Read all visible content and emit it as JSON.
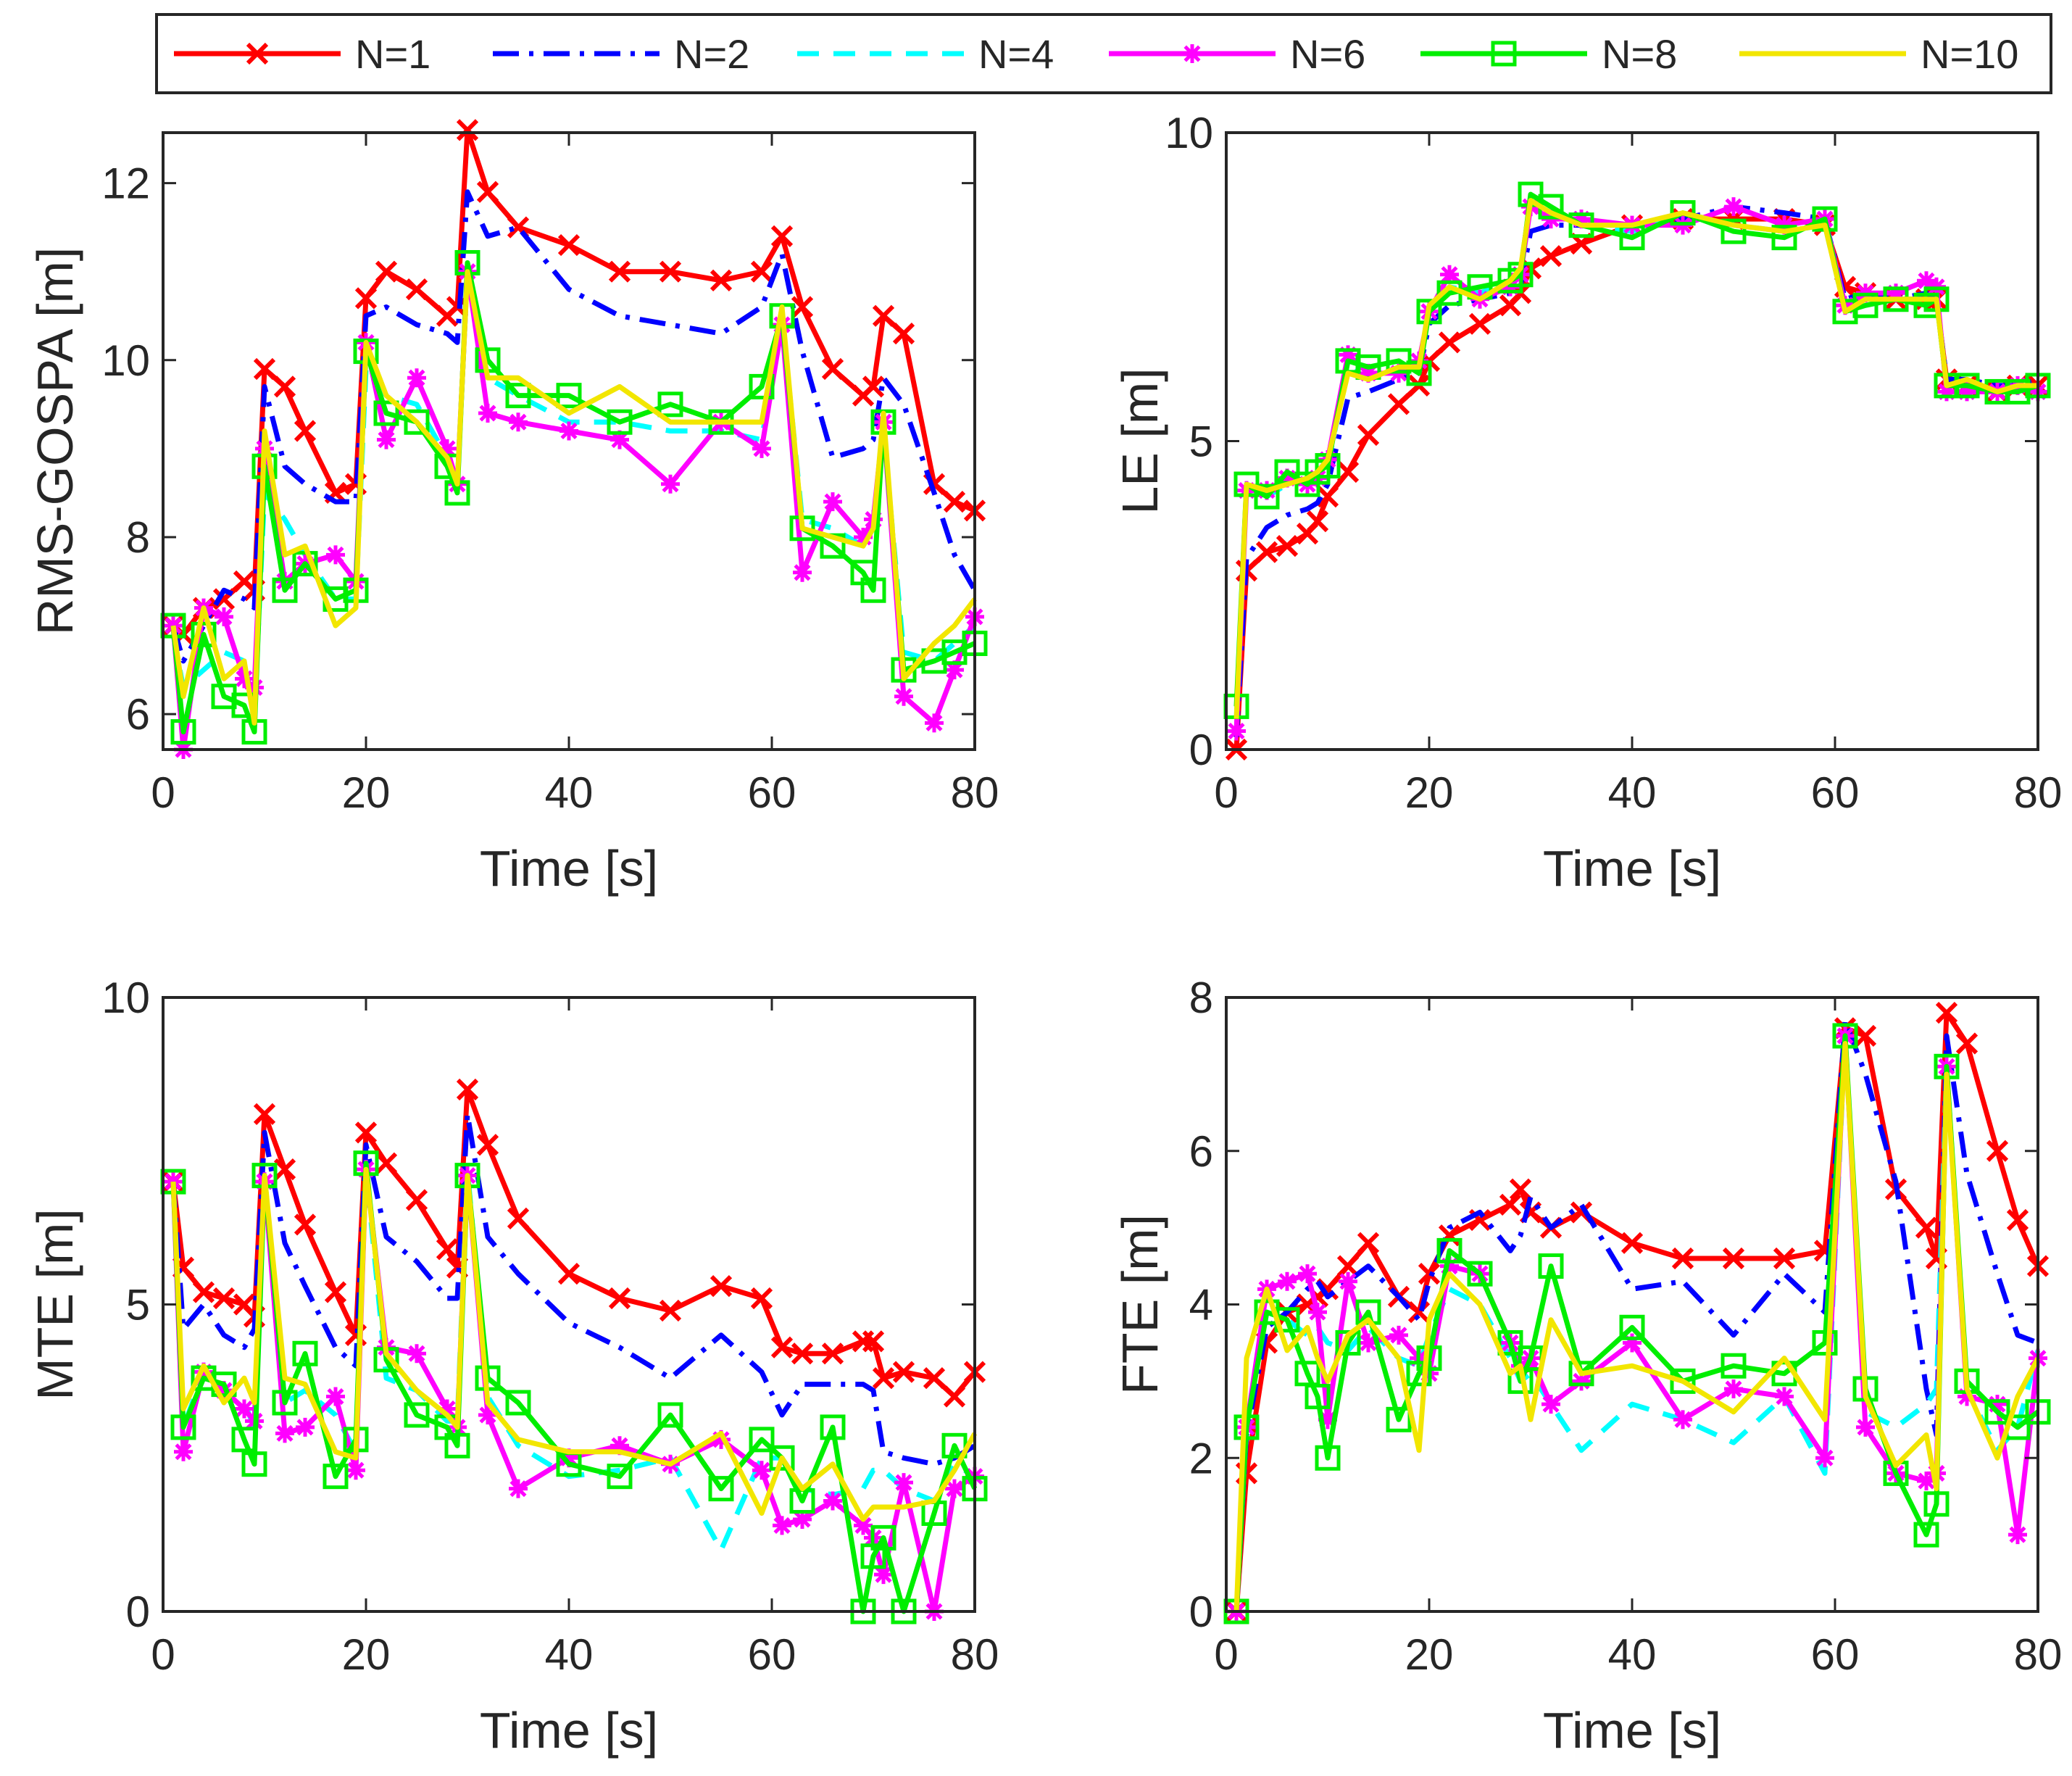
{
  "legend": {
    "placement": "top-outside",
    "entries": [
      {
        "name": "N=1",
        "color": "#ff0000",
        "style": "solid",
        "marker": "x"
      },
      {
        "name": "N=2",
        "color": "#0000ff",
        "style": "dashdot",
        "marker": "none"
      },
      {
        "name": "N=4",
        "color": "#00ffff",
        "style": "dashed",
        "marker": "none"
      },
      {
        "name": "N=6",
        "color": "#ff00ff",
        "style": "solid",
        "marker": "asterisk"
      },
      {
        "name": "N=8",
        "color": "#00ee00",
        "style": "solid",
        "marker": "square"
      },
      {
        "name": "N=10",
        "color": "#f2e600",
        "style": "solid",
        "marker": "none"
      }
    ]
  },
  "chart_data": [
    {
      "type": "line",
      "title": "",
      "xlabel": "Time [s]",
      "ylabel": "RMS-GOSPA [m]",
      "xlim": [
        0,
        80
      ],
      "ylim": [
        5.6,
        12.57
      ],
      "xticks": [
        0,
        20,
        40,
        60,
        80
      ],
      "yticks": [
        6,
        8,
        10,
        12
      ],
      "grid": false,
      "x": [
        1,
        2,
        4,
        6,
        8,
        9,
        10,
        12,
        14,
        17,
        19,
        20,
        22,
        25,
        28,
        29,
        30,
        32,
        35,
        40,
        45,
        50,
        55,
        59,
        61,
        63,
        66,
        69,
        70,
        71,
        73,
        76,
        78,
        80
      ],
      "series": [
        {
          "name": "N=1",
          "values": [
            7,
            6.9,
            7.2,
            7.3,
            7.5,
            7.4,
            9.9,
            9.7,
            9.2,
            8.5,
            8.6,
            10.7,
            11,
            10.8,
            10.5,
            10.6,
            12.6,
            11.9,
            11.5,
            11.3,
            11,
            11,
            10.9,
            11,
            11.4,
            10.6,
            9.9,
            9.6,
            9.7,
            10.5,
            10.3,
            8.6,
            8.4,
            8.3
          ]
        },
        {
          "name": "N=2",
          "values": [
            7,
            6.6,
            7,
            7.4,
            7.3,
            7.2,
            9.7,
            8.8,
            8.6,
            8.4,
            8.4,
            10.5,
            10.6,
            10.4,
            10.3,
            10.2,
            11.9,
            11.4,
            11.5,
            10.8,
            10.5,
            10.4,
            10.3,
            10.6,
            11.2,
            10.1,
            8.9,
            9,
            9.1,
            9.8,
            9.5,
            8.5,
            7.8,
            7.4
          ]
        },
        {
          "name": "N=4",
          "values": [
            6.9,
            6.3,
            6.5,
            6.7,
            6.6,
            6,
            8.5,
            8.2,
            7.8,
            7.3,
            7.3,
            9.9,
            9.6,
            9.5,
            8.9,
            8.6,
            11,
            9.8,
            9.6,
            9.3,
            9.3,
            9.2,
            9.2,
            9.1,
            10.5,
            8.2,
            8.1,
            7.9,
            8.1,
            9.2,
            6.7,
            6.6,
            6.8,
            7
          ]
        },
        {
          "name": "N=6",
          "values": [
            7,
            5.6,
            7.2,
            7.1,
            6.4,
            6.3,
            9,
            7.5,
            7.7,
            7.8,
            7.5,
            10.2,
            9.1,
            9.8,
            9,
            8.6,
            11,
            9.4,
            9.3,
            9.2,
            9.1,
            8.6,
            9.3,
            9,
            10.4,
            7.6,
            8.4,
            8,
            8.2,
            9.3,
            6.2,
            5.9,
            6.5,
            7.1
          ]
        },
        {
          "name": "N=8",
          "values": [
            7,
            5.8,
            6.9,
            6.2,
            6.1,
            5.8,
            8.8,
            7.4,
            7.7,
            7.3,
            7.4,
            10.1,
            9.4,
            9.3,
            8.8,
            8.5,
            11.1,
            10,
            9.6,
            9.6,
            9.3,
            9.5,
            9.3,
            9.7,
            10.5,
            8.1,
            7.9,
            7.6,
            7.4,
            9.3,
            6.5,
            6.6,
            6.7,
            6.8
          ]
        },
        {
          "name": "N=10",
          "values": [
            7,
            6.2,
            7.2,
            6.4,
            6.6,
            5.9,
            9.2,
            7.8,
            7.9,
            7,
            7.2,
            10.2,
            9.6,
            9.3,
            8.9,
            8.6,
            11,
            9.8,
            9.8,
            9.4,
            9.7,
            9.3,
            9.3,
            9.3,
            10.6,
            8.1,
            8,
            7.9,
            8.1,
            9.4,
            6.4,
            6.8,
            7,
            7.3
          ]
        }
      ]
    },
    {
      "type": "line",
      "title": "",
      "xlabel": "Time [s]",
      "ylabel": "LE [m]",
      "xlim": [
        0,
        80
      ],
      "ylim": [
        0,
        10
      ],
      "xticks": [
        0,
        20,
        40,
        60,
        80
      ],
      "yticks": [
        0,
        5,
        10
      ],
      "grid": false,
      "x": [
        1,
        2,
        4,
        6,
        8,
        9,
        10,
        12,
        14,
        17,
        19,
        20,
        22,
        25,
        28,
        29,
        30,
        32,
        35,
        40,
        45,
        50,
        55,
        59,
        61,
        63,
        66,
        69,
        70,
        71,
        73,
        76,
        78,
        80
      ],
      "series": [
        {
          "name": "N=1",
          "values": [
            0,
            2.9,
            3.2,
            3.3,
            3.5,
            3.7,
            4.1,
            4.5,
            5.1,
            5.6,
            5.9,
            6.3,
            6.6,
            6.9,
            7.2,
            7.4,
            7.8,
            8,
            8.2,
            8.5,
            8.6,
            8.6,
            8.6,
            8.5,
            7.5,
            7.4,
            7.3,
            7.3,
            7.3,
            6,
            5.9,
            5.8,
            5.9,
            5.9
          ]
        },
        {
          "name": "N=2",
          "values": [
            0.2,
            3.1,
            3.6,
            3.8,
            3.9,
            4,
            4.3,
            5.7,
            5.8,
            6,
            6.1,
            6.9,
            7.2,
            7.3,
            7.4,
            7.5,
            8.4,
            8.5,
            8.5,
            8.5,
            8.6,
            8.8,
            8.7,
            8.6,
            7.3,
            7.4,
            7.3,
            7.4,
            7.3,
            6,
            6,
            5.9,
            5.9,
            6
          ]
        },
        {
          "name": "N=4",
          "values": [
            0.5,
            4.3,
            4.1,
            4.3,
            4.4,
            4.5,
            4.6,
            6.2,
            6,
            6.2,
            6.2,
            7.2,
            7.5,
            7.4,
            7.6,
            7.8,
            8.9,
            8.7,
            8.5,
            8.4,
            8.7,
            8.5,
            8.4,
            8.5,
            7.1,
            7.3,
            7.3,
            7.3,
            7.3,
            5.9,
            5.9,
            5.8,
            5.9,
            5.9
          ]
        },
        {
          "name": "N=6",
          "values": [
            0.3,
            4.2,
            4.2,
            4.4,
            4.3,
            4.4,
            4.7,
            6.4,
            6.1,
            6.1,
            6.3,
            7.1,
            7.7,
            7.3,
            7.5,
            7.7,
            8.8,
            8.6,
            8.6,
            8.5,
            8.5,
            8.8,
            8.5,
            8.6,
            7.2,
            7.4,
            7.4,
            7.6,
            7.5,
            5.8,
            5.8,
            5.8,
            5.9,
            5.8
          ]
        },
        {
          "name": "N=8",
          "values": [
            0.7,
            4.3,
            4.1,
            4.5,
            4.3,
            4.5,
            4.6,
            6.3,
            6.2,
            6.3,
            6.1,
            7.1,
            7.4,
            7.5,
            7.6,
            7.7,
            9,
            8.8,
            8.5,
            8.3,
            8.7,
            8.4,
            8.3,
            8.6,
            7.1,
            7.2,
            7.3,
            7.2,
            7.3,
            5.9,
            5.9,
            5.8,
            5.8,
            5.9
          ]
        },
        {
          "name": "N=10",
          "values": [
            0.5,
            4.3,
            4.2,
            4.3,
            4.4,
            4.5,
            4.7,
            6.1,
            6,
            6.2,
            6.2,
            7.2,
            7.5,
            7.3,
            7.6,
            7.8,
            8.9,
            8.7,
            8.5,
            8.5,
            8.7,
            8.5,
            8.4,
            8.5,
            7.1,
            7.3,
            7.3,
            7.3,
            7.3,
            5.9,
            6,
            5.8,
            5.9,
            5.9
          ]
        }
      ]
    },
    {
      "type": "line",
      "title": "",
      "xlabel": "Time [s]",
      "ylabel": "MTE [m]",
      "xlim": [
        0,
        80
      ],
      "ylim": [
        0,
        10
      ],
      "xticks": [
        0,
        20,
        40,
        60,
        80
      ],
      "yticks": [
        0,
        5,
        10
      ],
      "grid": false,
      "x": [
        1,
        2,
        4,
        6,
        8,
        9,
        10,
        12,
        14,
        17,
        19,
        20,
        22,
        25,
        28,
        29,
        30,
        32,
        35,
        40,
        45,
        50,
        55,
        59,
        61,
        63,
        66,
        69,
        70,
        71,
        73,
        76,
        78,
        80
      ],
      "series": [
        {
          "name": "N=1",
          "values": [
            7,
            5.6,
            5.2,
            5.1,
            5,
            4.8,
            8.1,
            7.2,
            6.3,
            5.2,
            4.5,
            7.8,
            7.3,
            6.7,
            5.9,
            5.6,
            8.5,
            7.6,
            6.4,
            5.5,
            5.1,
            4.9,
            5.3,
            5.1,
            4.3,
            4.2,
            4.2,
            4.4,
            4.4,
            3.8,
            3.9,
            3.8,
            3.5,
            3.9
          ]
        },
        {
          "name": "N=2",
          "values": [
            7,
            4.6,
            5,
            4.5,
            4.3,
            4.6,
            7.8,
            6,
            5.3,
            4.3,
            4,
            7.6,
            6.1,
            5.7,
            5.1,
            5.1,
            8.1,
            6.1,
            5.5,
            4.7,
            4.3,
            3.8,
            4.5,
            3.9,
            3.2,
            3.7,
            3.7,
            3.7,
            3.6,
            2.6,
            2.5,
            2.4,
            2.5,
            2.7
          ]
        },
        {
          "name": "N=4",
          "values": [
            7,
            3,
            3.9,
            3.5,
            3.4,
            3,
            7.1,
            3.4,
            3.6,
            3.2,
            2.6,
            7.2,
            3.8,
            3.6,
            3.1,
            3.1,
            7.2,
            3.5,
            2.7,
            2.2,
            2.3,
            2.5,
            1,
            2.5,
            2.5,
            2,
            1.9,
            2,
            2.3,
            2.3,
            2,
            1.8,
            2.4,
            2.2
          ]
        },
        {
          "name": "N=6",
          "values": [
            7,
            2.6,
            3.9,
            3.6,
            3.3,
            3.1,
            7,
            2.9,
            3,
            3.5,
            2.3,
            7.2,
            4.3,
            4.2,
            3.3,
            3,
            7.1,
            3.2,
            2,
            2.5,
            2.7,
            2.4,
            2.8,
            2.3,
            1.4,
            1.5,
            1.8,
            1.4,
            1.2,
            0.6,
            2.1,
            0,
            2,
            2.2
          ]
        },
        {
          "name": "N=8",
          "values": [
            7,
            3,
            3.8,
            3.7,
            2.8,
            2.4,
            7.1,
            3.4,
            4.2,
            2.2,
            2.8,
            7.3,
            4.1,
            3.2,
            3,
            2.7,
            7.1,
            3.8,
            3.4,
            2.4,
            2.2,
            3.2,
            2,
            2.8,
            2.5,
            1.8,
            3,
            0,
            0.9,
            1.2,
            0,
            1.6,
            2.7,
            2
          ]
        },
        {
          "name": "N=10",
          "values": [
            7,
            3.3,
            4,
            3.4,
            3.8,
            3.4,
            7.1,
            3.8,
            3.7,
            2.6,
            2.5,
            7.2,
            4.2,
            3.6,
            3.2,
            3,
            7.1,
            3.4,
            2.8,
            2.6,
            2.6,
            2.4,
            2.9,
            1.6,
            2.5,
            2,
            2.4,
            1.5,
            1.7,
            1.7,
            1.7,
            1.8,
            2.3,
            2.9
          ]
        }
      ]
    },
    {
      "type": "line",
      "title": "",
      "xlabel": "Time [s]",
      "ylabel": "FTE [m]",
      "xlim": [
        0,
        80
      ],
      "ylim": [
        0,
        8
      ],
      "xticks": [
        0,
        20,
        40,
        60,
        80
      ],
      "yticks": [
        0,
        2,
        4,
        6,
        8
      ],
      "grid": false,
      "x": [
        1,
        2,
        4,
        6,
        8,
        9,
        10,
        12,
        14,
        17,
        19,
        20,
        22,
        25,
        28,
        29,
        30,
        32,
        35,
        40,
        45,
        50,
        55,
        59,
        61,
        63,
        66,
        69,
        70,
        71,
        73,
        76,
        78,
        80
      ],
      "series": [
        {
          "name": "N=1",
          "values": [
            0,
            1.8,
            3.5,
            3.9,
            4,
            4.1,
            4.2,
            4.5,
            4.8,
            4.1,
            3.9,
            4.4,
            4.9,
            5.1,
            5.3,
            5.5,
            5.2,
            5,
            5.2,
            4.8,
            4.6,
            4.6,
            4.6,
            4.7,
            7.6,
            7.5,
            5.5,
            5,
            4.6,
            7.8,
            7.4,
            6,
            5.1,
            4.5
          ]
        },
        {
          "name": "N=2",
          "values": [
            0,
            2.3,
            3.7,
            3.9,
            4.2,
            4.3,
            4.1,
            4.3,
            4.5,
            4.1,
            3.8,
            4.3,
            5,
            5.2,
            4.7,
            4.9,
            5.4,
            5,
            5.3,
            4.2,
            4.3,
            3.6,
            4.4,
            3.9,
            7.7,
            7,
            5.6,
            2.9,
            2.3,
            7.5,
            5.7,
            4.4,
            3.6,
            3.5
          ]
        },
        {
          "name": "N=4",
          "values": [
            0,
            2.5,
            3.9,
            3.8,
            3.6,
            3.7,
            3.5,
            3.4,
            3.7,
            3.3,
            3.2,
            3.6,
            4.2,
            4,
            3.3,
            3,
            3.1,
            2.7,
            2.1,
            2.7,
            2.5,
            2.2,
            2.8,
            1.8,
            7.5,
            2.6,
            2.4,
            2.7,
            2.9,
            7.1,
            2.9,
            2.1,
            2.4,
            3.4
          ]
        },
        {
          "name": "N=6",
          "values": [
            0,
            2.4,
            4.2,
            4.3,
            4.4,
            3.9,
            2.5,
            4.3,
            3.5,
            3.6,
            3.3,
            3.1,
            4.5,
            4.4,
            3.5,
            3.2,
            3.3,
            2.7,
            3,
            3.5,
            2.5,
            2.9,
            2.8,
            2,
            7.5,
            2.4,
            1.8,
            1.7,
            1.8,
            7.1,
            2.8,
            2.7,
            1,
            3.3
          ]
        },
        {
          "name": "N=8",
          "values": [
            0,
            2.4,
            3.9,
            3.8,
            3.1,
            2.8,
            2,
            3.5,
            3.9,
            2.5,
            3.1,
            3.3,
            4.7,
            4.4,
            3.5,
            3,
            3.3,
            4.5,
            3.1,
            3.7,
            3,
            3.2,
            3.1,
            3.5,
            7.5,
            2.9,
            1.8,
            1,
            1.4,
            7.1,
            3,
            2.6,
            2.4,
            2.6
          ]
        },
        {
          "name": "N=10",
          "values": [
            0,
            3.3,
            4.2,
            3.4,
            3.7,
            3.3,
            3,
            3.6,
            3.8,
            3.3,
            2.1,
            3.8,
            4.4,
            4,
            3.1,
            3.2,
            2.5,
            3.8,
            3.1,
            3.2,
            3,
            2.6,
            3.3,
            2.5,
            7.4,
            2.8,
            1.9,
            2.3,
            1.6,
            7,
            2.9,
            2,
            2.8,
            3.3
          ]
        }
      ]
    }
  ]
}
